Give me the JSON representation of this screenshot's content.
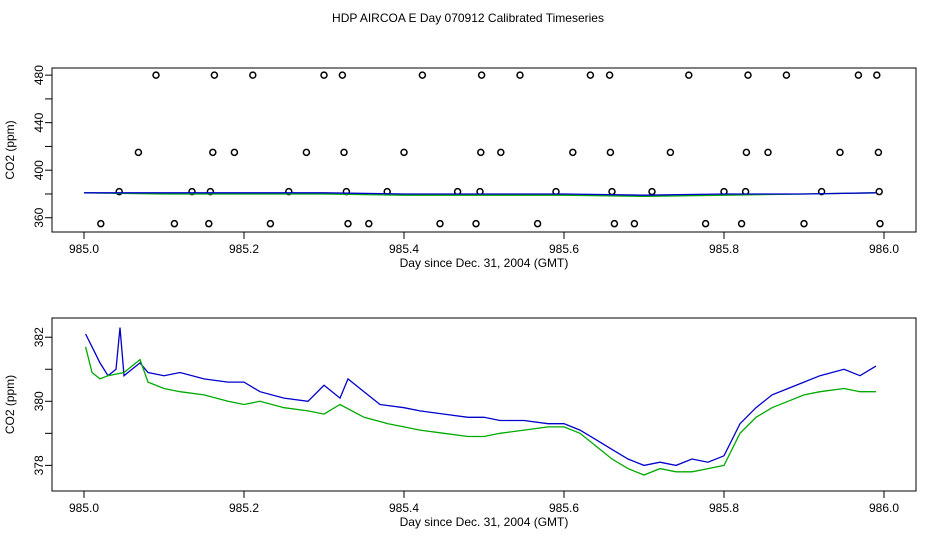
{
  "title": "HDP AIRCOA E  Day 070912  Calibrated Timeseries",
  "colors": {
    "blue": "#0000cc",
    "green": "#00aa00",
    "points": "#000000"
  },
  "chart_data": [
    {
      "type": "line",
      "xlabel": "Day since Dec. 31, 2004 (GMT)",
      "ylabel": "CO2 (ppm)",
      "xlim": [
        985.0,
        986.0
      ],
      "ylim": [
        348,
        486
      ],
      "xticks": [
        985.0,
        985.2,
        985.4,
        985.6,
        985.8,
        986.0
      ],
      "xtick_labels": [
        "985.0",
        "985.2",
        "985.4",
        "985.6",
        "985.8",
        "986.0"
      ],
      "yticks": [
        360,
        400,
        440,
        480
      ],
      "ytick_labels": [
        "360",
        "400",
        "440",
        "480"
      ],
      "yticks_minor": [
        380,
        420,
        460
      ],
      "ytick_minor_labels": [
        "",
        "",
        ""
      ],
      "scatter": {
        "name": "",
        "x": [
          985.09,
          985.163,
          985.211,
          985.3,
          985.323,
          985.423,
          985.497,
          985.545,
          985.633,
          985.657,
          985.756,
          985.83,
          985.878,
          985.968,
          985.991,
          985.068,
          985.161,
          985.188,
          985.278,
          985.325,
          985.4,
          985.496,
          985.521,
          985.611,
          985.658,
          985.733,
          985.828,
          985.855,
          985.945,
          985.993,
          985.044,
          985.135,
          985.158,
          985.256,
          985.328,
          985.379,
          985.467,
          985.495,
          985.59,
          985.66,
          985.71,
          985.8,
          985.827,
          985.922,
          985.994,
          985.021,
          985.113,
          985.156,
          985.233,
          985.33,
          985.356,
          985.445,
          985.49,
          985.567,
          985.663,
          985.688,
          985.777,
          985.822,
          985.9,
          985.995
        ],
        "y": [
          480,
          480,
          480,
          480,
          480,
          480,
          480,
          480,
          480,
          480,
          480,
          480,
          480,
          480,
          480,
          415,
          415,
          415,
          415,
          415,
          415,
          415,
          415,
          415,
          415,
          415,
          415,
          415,
          415,
          415,
          382,
          382,
          382,
          382,
          382,
          382,
          382,
          382,
          382,
          382,
          382,
          382,
          382,
          382,
          382,
          355,
          355,
          355,
          355,
          355,
          355,
          355,
          355,
          355,
          355,
          355,
          355,
          355,
          355,
          355
        ]
      },
      "series": [
        {
          "name": "",
          "color": "#00aa00",
          "x": [
            985.0,
            985.1,
            985.2,
            985.3,
            985.4,
            985.5,
            985.6,
            985.7,
            985.8,
            985.9,
            985.99
          ],
          "y": [
            381,
            380,
            380,
            380,
            379,
            379,
            379,
            378,
            379,
            380,
            381
          ]
        },
        {
          "name": "",
          "color": "#0000cc",
          "x": [
            985.0,
            985.1,
            985.2,
            985.3,
            985.4,
            985.5,
            985.6,
            985.7,
            985.8,
            985.9,
            985.99
          ],
          "y": [
            381,
            381,
            381,
            381,
            380,
            380,
            380,
            379,
            380,
            380,
            381
          ]
        }
      ],
      "grid": false
    },
    {
      "type": "line",
      "xlabel": "Day since Dec. 31, 2004 (GMT)",
      "ylabel": "CO2 (ppm)",
      "xlim": [
        985.0,
        986.0
      ],
      "ylim": [
        377.2,
        382.6
      ],
      "xticks": [
        985.0,
        985.2,
        985.4,
        985.6,
        985.8,
        986.0
      ],
      "xtick_labels": [
        "985.0",
        "985.2",
        "985.4",
        "985.6",
        "985.8",
        "986.0"
      ],
      "yticks": [
        378,
        380,
        382
      ],
      "ytick_labels": [
        "378",
        "380",
        "382"
      ],
      "yticks_minor": [
        379,
        381
      ],
      "ytick_minor_labels": [
        "",
        ""
      ],
      "series": [
        {
          "name": "",
          "color": "#0000cc",
          "x": [
            985.002,
            985.01,
            985.02,
            985.03,
            985.04,
            985.045,
            985.05,
            985.06,
            985.07,
            985.08,
            985.1,
            985.12,
            985.15,
            985.18,
            985.2,
            985.22,
            985.25,
            985.28,
            985.3,
            985.32,
            985.33,
            985.35,
            985.37,
            985.4,
            985.42,
            985.45,
            985.48,
            985.5,
            985.52,
            985.55,
            985.58,
            985.6,
            985.62,
            985.64,
            985.66,
            985.68,
            985.7,
            985.72,
            985.74,
            985.76,
            985.78,
            985.8,
            985.82,
            985.84,
            985.86,
            985.88,
            985.9,
            985.92,
            985.95,
            985.97,
            985.99
          ],
          "y": [
            382.1,
            381.7,
            381.2,
            380.8,
            381.0,
            382.3,
            380.8,
            381.0,
            381.2,
            380.9,
            380.8,
            380.9,
            380.7,
            380.6,
            380.6,
            380.3,
            380.1,
            380.0,
            380.5,
            380.1,
            380.7,
            380.3,
            379.9,
            379.8,
            379.7,
            379.6,
            379.5,
            379.5,
            379.4,
            379.4,
            379.3,
            379.3,
            379.1,
            378.8,
            378.5,
            378.2,
            378.0,
            378.1,
            378.0,
            378.2,
            378.1,
            378.3,
            379.3,
            379.8,
            380.2,
            380.4,
            380.6,
            380.8,
            381.0,
            380.8,
            381.1
          ]
        },
        {
          "name": "",
          "color": "#00aa00",
          "x": [
            985.002,
            985.01,
            985.02,
            985.03,
            985.05,
            985.07,
            985.08,
            985.1,
            985.12,
            985.15,
            985.18,
            985.2,
            985.22,
            985.25,
            985.28,
            985.3,
            985.32,
            985.35,
            985.38,
            985.4,
            985.42,
            985.45,
            985.48,
            985.5,
            985.52,
            985.55,
            985.58,
            985.6,
            985.62,
            985.64,
            985.66,
            985.68,
            985.7,
            985.72,
            985.74,
            985.76,
            985.78,
            985.8,
            985.82,
            985.84,
            985.86,
            985.88,
            985.9,
            985.92,
            985.95,
            985.97,
            985.99
          ],
          "y": [
            381.7,
            380.9,
            380.7,
            380.8,
            380.9,
            381.3,
            380.6,
            380.4,
            380.3,
            380.2,
            380.0,
            379.9,
            380.0,
            379.8,
            379.7,
            379.6,
            379.9,
            379.5,
            379.3,
            379.2,
            379.1,
            379.0,
            378.9,
            378.9,
            379.0,
            379.1,
            379.2,
            379.2,
            379.0,
            378.6,
            378.2,
            377.9,
            377.7,
            377.9,
            377.8,
            377.8,
            377.9,
            378.0,
            379.0,
            379.5,
            379.8,
            380.0,
            380.2,
            380.3,
            380.4,
            380.3,
            380.3
          ]
        }
      ],
      "grid": false
    }
  ]
}
